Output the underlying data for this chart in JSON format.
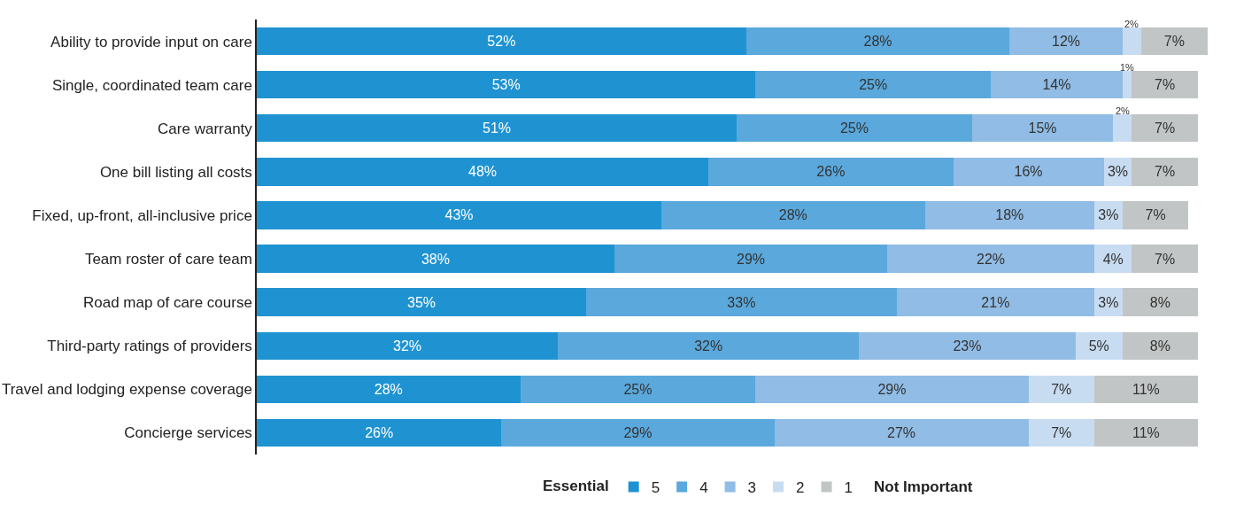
{
  "chart_data": {
    "type": "bar",
    "orientation": "horizontal",
    "stacked": true,
    "legend": "bottom",
    "legend_title": "Essential",
    "annotations": [
      "Not Important"
    ],
    "categories": [
      "Ability to provide input on care",
      "Single, coordinated team care",
      "Care warranty",
      "One bill listing all costs",
      "Fixed, up-front, all-inclusive price",
      "Team roster of care team",
      "Road map of care course",
      "Third-party ratings of providers",
      "Travel and lodging expense coverage",
      "Concierge services"
    ],
    "series": [
      {
        "name": "5",
        "color": "#1f93d2",
        "values": [
          52,
          53,
          51,
          48,
          43,
          38,
          35,
          32,
          28,
          26
        ],
        "value_labels": [
          "52%",
          "53%",
          "51%",
          "48%",
          "43%",
          "38%",
          "35%",
          "32%",
          "28%",
          "26%"
        ]
      },
      {
        "name": "4",
        "color": "#5aa8dc",
        "values": [
          28,
          25,
          25,
          26,
          28,
          29,
          33,
          32,
          25,
          29
        ],
        "value_labels": [
          "28%",
          "25%",
          "25%",
          "26%",
          "28%",
          "29%",
          "33%",
          "32%",
          "25%",
          "29%"
        ]
      },
      {
        "name": "3",
        "color": "#90bce5",
        "values": [
          12,
          14,
          15,
          16,
          18,
          22,
          21,
          23,
          29,
          27
        ],
        "value_labels": [
          "12%",
          "14%",
          "15%",
          "16%",
          "18%",
          "22%",
          "21%",
          "23%",
          "29%",
          "27%"
        ]
      },
      {
        "name": "2",
        "color": "#c8dcf1",
        "values": [
          2,
          1,
          2,
          3,
          3,
          4,
          3,
          5,
          7,
          7
        ],
        "value_labels": [
          "2%",
          "1%",
          "2%",
          "3%",
          "3%",
          "4%",
          "3%",
          "5%",
          "7%",
          "7%"
        ]
      },
      {
        "name": "1",
        "color": "#c2c5c5",
        "values": [
          7,
          7,
          7,
          7,
          7,
          7,
          8,
          8,
          11,
          11
        ],
        "value_labels": [
          "7%",
          "7%",
          "7%",
          "7%",
          "7%",
          "7%",
          "8%",
          "8%",
          "11%",
          "11%"
        ]
      }
    ]
  }
}
